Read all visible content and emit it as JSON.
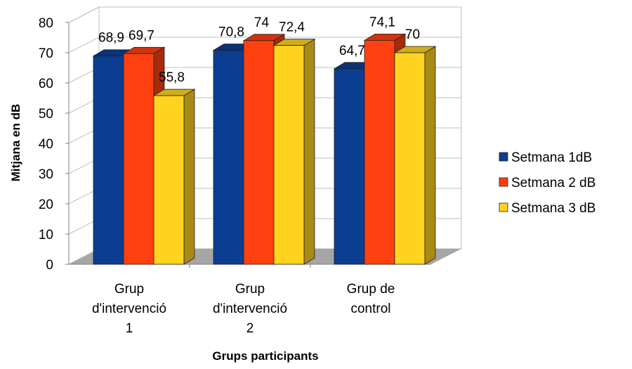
{
  "chart_data": {
    "type": "bar",
    "title": "",
    "xlabel": "Grups participants",
    "ylabel": "Mitjana en dB",
    "ylim": [
      0,
      80
    ],
    "yticks": [
      "0",
      "10",
      "20",
      "30",
      "40",
      "50",
      "60",
      "70",
      "80"
    ],
    "grid": true,
    "legend_position": "right",
    "categories": [
      [
        "Grup",
        "d'intervenció",
        "1"
      ],
      [
        "Grup",
        "d'intervenció",
        "2"
      ],
      [
        "Grup de",
        "control"
      ]
    ],
    "series": [
      {
        "name": "Setmana 1dB",
        "color": "#0b3d91",
        "values": [
          68.9,
          70.8,
          64.7
        ],
        "labels": [
          "68,9",
          "70,8",
          "64,7"
        ]
      },
      {
        "name": "Setmana 2 dB",
        "color": "#ff4010",
        "values": [
          69.7,
          74,
          74.1
        ],
        "labels": [
          "69,7",
          "74",
          "74,1"
        ]
      },
      {
        "name": "Setmana 3 dB",
        "color": "#ffd320",
        "values": [
          55.8,
          72.4,
          70
        ],
        "labels": [
          "55,8",
          "72,4",
          "70"
        ]
      }
    ]
  }
}
